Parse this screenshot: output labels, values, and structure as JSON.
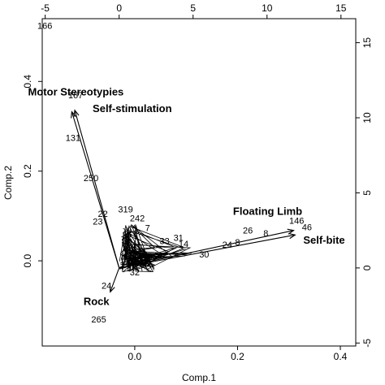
{
  "chart_data": {
    "type": "scatter",
    "title": "",
    "xlabel": "Comp.1",
    "ylabel": "Comp.2",
    "xlim": [
      -0.18,
      0.43
    ],
    "ylim": [
      -0.19,
      0.54
    ],
    "xticks": [
      0.0,
      0.2,
      0.4
    ],
    "yticks": [
      0.0,
      0.2,
      0.4
    ],
    "xtick_labels": [
      "0.0",
      "0.2",
      "0.4"
    ],
    "ytick_labels": [
      "0.0",
      "0.2",
      "0.4"
    ],
    "secondary_axes": {
      "xlim": [
        -5.2,
        16.0
      ],
      "ylim": [
        -5.2,
        16.6
      ],
      "xticks": [
        -5,
        0,
        5,
        10,
        15
      ],
      "yticks": [
        -5,
        0,
        5,
        10,
        15
      ],
      "xtick_labels": [
        "-5",
        "0",
        "5",
        "10",
        "15"
      ],
      "ytick_labels": [
        "-5",
        "0",
        "5",
        "10",
        "15"
      ]
    },
    "grid": false,
    "loadings": [
      {
        "name": "Motor Stereotypies",
        "x": -3.2,
        "y": 10.4
      },
      {
        "name": "Self-stimulation",
        "x": -3.0,
        "y": 10.5
      },
      {
        "name": "Floating Limb",
        "x": 11.8,
        "y": 2.5
      },
      {
        "name": "Self-bite",
        "x": 11.9,
        "y": 2.2
      },
      {
        "name": "Rock",
        "x": -0.6,
        "y": -1.6
      }
    ],
    "points": [
      {
        "label": "166",
        "x": -0.175,
        "y": 0.525
      },
      {
        "label": "167",
        "x": -0.115,
        "y": 0.37
      },
      {
        "label": "131",
        "x": -0.12,
        "y": 0.275
      },
      {
        "label": "250",
        "x": -0.085,
        "y": 0.185
      },
      {
        "label": "319",
        "x": -0.018,
        "y": 0.115
      },
      {
        "label": "22",
        "x": -0.062,
        "y": 0.105
      },
      {
        "label": "242",
        "x": 0.005,
        "y": 0.095
      },
      {
        "label": "23",
        "x": -0.072,
        "y": 0.088
      },
      {
        "label": "7",
        "x": 0.025,
        "y": 0.074
      },
      {
        "label": "31",
        "x": 0.085,
        "y": 0.052
      },
      {
        "label": "33",
        "x": 0.058,
        "y": 0.045
      },
      {
        "label": "14",
        "x": 0.095,
        "y": 0.038
      },
      {
        "label": "26",
        "x": 0.22,
        "y": 0.068
      },
      {
        "label": "8",
        "x": 0.255,
        "y": 0.062
      },
      {
        "label": "146",
        "x": 0.315,
        "y": 0.09
      },
      {
        "label": "46",
        "x": 0.335,
        "y": 0.075
      },
      {
        "label": "24",
        "x": 0.18,
        "y": 0.036
      },
      {
        "label": "8",
        "x": 0.2,
        "y": 0.042
      },
      {
        "label": "30",
        "x": 0.135,
        "y": 0.015
      },
      {
        "label": "32",
        "x": 0.0,
        "y": -0.025
      },
      {
        "label": "24",
        "x": -0.055,
        "y": -0.055
      },
      {
        "label": "265",
        "x": -0.07,
        "y": -0.13
      }
    ]
  }
}
